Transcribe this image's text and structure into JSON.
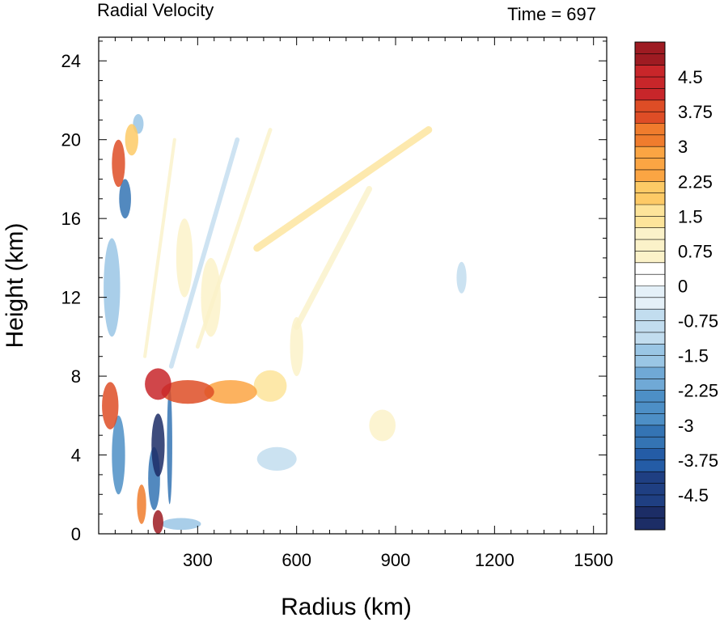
{
  "chart_data": {
    "type": "heatmap",
    "title_left": "Radial Velocity",
    "title_right": "Time = 697",
    "xlabel": "Radius (km)",
    "ylabel": "Height (km)",
    "xlim": [
      0,
      1540
    ],
    "ylim": [
      0,
      25.2
    ],
    "xticks": [
      300,
      600,
      900,
      1200,
      1500
    ],
    "xtick_labels": [
      "300",
      "600",
      "900",
      "1200",
      "1500"
    ],
    "yticks": [
      0,
      4,
      8,
      12,
      16,
      20,
      24
    ],
    "ytick_labels": [
      "0",
      "4",
      "8",
      "12",
      "16",
      "20",
      "24"
    ],
    "grid": false,
    "colorbar": {
      "min": -5.25,
      "max": 5.25,
      "step": 0.25,
      "tick_values": [
        4.5,
        3.75,
        3,
        2.25,
        1.5,
        0.75,
        0,
        -0.75,
        -1.5,
        -2.25,
        -3,
        -3.75,
        -4.5
      ],
      "tick_labels": [
        "4.5",
        "3.75",
        "3",
        "2.25",
        "1.5",
        "0.75",
        "0",
        "-0.75",
        "-1.5",
        "-2.25",
        "-3",
        "-3.75",
        "-4.5"
      ],
      "colors": [
        "#1c2d66",
        "#1f3f82",
        "#245ca6",
        "#3474b4",
        "#4d8fc6",
        "#70a9d6",
        "#9ac6e5",
        "#c2ddef",
        "#e4f0f8",
        "#ffffff",
        "#fbf2c9",
        "#fde49a",
        "#fdca66",
        "#fba543",
        "#f07c2d",
        "#de4d26",
        "#c8262a",
        "#9e1b22"
      ]
    },
    "features": [
      {
        "r": 180,
        "z": 4.5,
        "rw": 20,
        "zw": 1.6,
        "v": -5.0
      },
      {
        "r": 168,
        "z": 2.8,
        "rw": 18,
        "zw": 1.6,
        "v": -3.5
      },
      {
        "r": 215,
        "z": 4.5,
        "rw": 8,
        "zw": 3.0,
        "v": -3.0
      },
      {
        "r": 60,
        "z": 4.0,
        "rw": 20,
        "zw": 2.0,
        "v": -2.5
      },
      {
        "r": 180,
        "z": 0.6,
        "rw": 16,
        "zw": 0.6,
        "v": 5.0
      },
      {
        "r": 130,
        "z": 1.5,
        "rw": 14,
        "zw": 1.0,
        "v": 3.0
      },
      {
        "r": 180,
        "z": 7.6,
        "rw": 40,
        "zw": 0.8,
        "v": 4.5
      },
      {
        "r": 270,
        "z": 7.2,
        "rw": 80,
        "zw": 0.6,
        "v": 3.8
      },
      {
        "r": 400,
        "z": 7.2,
        "rw": 80,
        "zw": 0.6,
        "v": 2.6
      },
      {
        "r": 520,
        "z": 7.5,
        "rw": 50,
        "zw": 0.8,
        "v": 1.6
      },
      {
        "r": 600,
        "z": 9.5,
        "rw": 20,
        "zw": 1.5,
        "v": 1.1
      },
      {
        "r": 35,
        "z": 6.5,
        "rw": 25,
        "zw": 1.2,
        "v": 3.5
      },
      {
        "r": 60,
        "z": 18.8,
        "rw": 20,
        "zw": 1.2,
        "v": 4.0
      },
      {
        "r": 80,
        "z": 17.0,
        "rw": 18,
        "zw": 1.0,
        "v": -3.5
      },
      {
        "r": 100,
        "z": 20.0,
        "rw": 20,
        "zw": 0.8,
        "v": 2.0
      },
      {
        "r": 120,
        "z": 20.8,
        "rw": 16,
        "zw": 0.5,
        "v": -1.6
      },
      {
        "r": 40,
        "z": 12.5,
        "rw": 25,
        "zw": 2.5,
        "v": -1.4
      },
      {
        "r": 540,
        "z": 3.8,
        "rw": 60,
        "zw": 0.6,
        "v": -1.0
      },
      {
        "r": 860,
        "z": 5.5,
        "rw": 40,
        "zw": 0.8,
        "v": 0.9
      },
      {
        "r": 1100,
        "z": 13.0,
        "rw": 15,
        "zw": 0.8,
        "v": -0.8
      },
      {
        "r": 250,
        "z": 0.5,
        "rw": 60,
        "zw": 0.3,
        "v": -1.2
      },
      {
        "r": 260,
        "z": 14.0,
        "rw": 25,
        "zw": 2.0,
        "v": 0.9
      },
      {
        "r": 340,
        "z": 12.0,
        "rw": 30,
        "zw": 2.0,
        "v": 0.8
      }
    ],
    "streaks": [
      {
        "r0": 480,
        "z0": 14.5,
        "r1": 1000,
        "z1": 20.5,
        "w": 22,
        "v": 1.2
      },
      {
        "r0": 600,
        "z0": 10.5,
        "r1": 820,
        "z1": 17.5,
        "w": 18,
        "v": 0.8
      },
      {
        "r0": 220,
        "z0": 8.5,
        "r1": 420,
        "z1": 20.0,
        "w": 14,
        "v": -0.9
      },
      {
        "r0": 140,
        "z0": 9.0,
        "r1": 230,
        "z1": 20.0,
        "w": 10,
        "v": 0.9
      },
      {
        "r0": 300,
        "z0": 9.5,
        "r1": 520,
        "z1": 20.5,
        "w": 12,
        "v": 0.8
      }
    ]
  }
}
